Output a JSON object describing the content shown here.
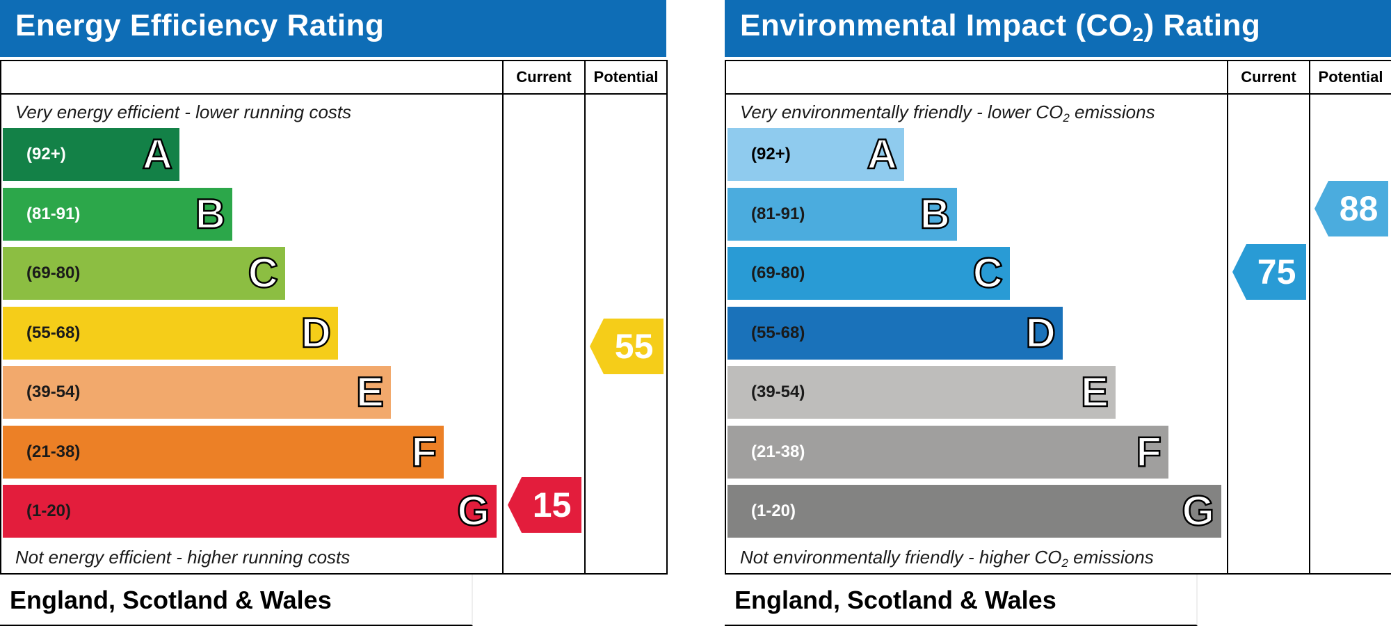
{
  "chart_data": [
    {
      "type": "bar",
      "title": "Energy Efficiency Rating",
      "columns": [
        "Current",
        "Potential"
      ],
      "top_caption": "Very energy efficient - lower running costs",
      "bottom_caption": "Not energy efficient - higher running costs",
      "region": "England, Scotland & Wales",
      "bands": [
        {
          "range": "(92+)",
          "letter": "A",
          "min": 92,
          "max": 100,
          "color": "#138147",
          "text_color": "#ffffff"
        },
        {
          "range": "(81-91)",
          "letter": "B",
          "min": 81,
          "max": 91,
          "color": "#2ca74a",
          "text_color": "#ffffff"
        },
        {
          "range": "(69-80)",
          "letter": "C",
          "min": 69,
          "max": 80,
          "color": "#8cbe42",
          "text_color": "#1a1a1a"
        },
        {
          "range": "(55-68)",
          "letter": "D",
          "min": 55,
          "max": 68,
          "color": "#f5cd19",
          "text_color": "#1a1a1a"
        },
        {
          "range": "(39-54)",
          "letter": "E",
          "min": 39,
          "max": 54,
          "color": "#f2a96c",
          "text_color": "#1a1a1a"
        },
        {
          "range": "(21-38)",
          "letter": "F",
          "min": 21,
          "max": 38,
          "color": "#ec8026",
          "text_color": "#1a1a1a"
        },
        {
          "range": "(1-20)",
          "letter": "G",
          "min": 1,
          "max": 20,
          "color": "#e31d3c",
          "text_color": "#1a1a1a"
        }
      ],
      "current": {
        "value": 15,
        "band": "G",
        "color": "#e31d3c"
      },
      "potential": {
        "value": 55,
        "band": "D",
        "color": "#f5cd19"
      }
    },
    {
      "type": "bar",
      "title": "Environmental Impact (CO",
      "title_sub": "2",
      "title_end": ") Rating",
      "columns": [
        "Current",
        "Potential"
      ],
      "top_caption": "Very environmentally friendly - lower CO",
      "top_caption_sub": "2",
      "top_caption_end": " emissions",
      "bottom_caption": "Not environmentally friendly - higher CO",
      "bottom_caption_sub": "2",
      "bottom_caption_end": " emissions",
      "region": "England, Scotland & Wales",
      "bands": [
        {
          "range": "(92+)",
          "letter": "A",
          "min": 92,
          "max": 100,
          "color": "#8fcbee",
          "text_color": "#000000"
        },
        {
          "range": "(81-91)",
          "letter": "B",
          "min": 81,
          "max": 91,
          "color": "#4bacde",
          "text_color": "#1a1a1a"
        },
        {
          "range": "(69-80)",
          "letter": "C",
          "min": 69,
          "max": 80,
          "color": "#299bd5",
          "text_color": "#1a1a1a"
        },
        {
          "range": "(55-68)",
          "letter": "D",
          "min": 55,
          "max": 68,
          "color": "#1a72ba",
          "text_color": "#1a1a1a"
        },
        {
          "range": "(39-54)",
          "letter": "E",
          "min": 39,
          "max": 54,
          "color": "#bebdbb",
          "text_color": "#1a1a1a"
        },
        {
          "range": "(21-38)",
          "letter": "F",
          "min": 21,
          "max": 38,
          "color": "#a09f9e",
          "text_color": "#ffffff"
        },
        {
          "range": "(1-20)",
          "letter": "G",
          "min": 1,
          "max": 20,
          "color": "#838382",
          "text_color": "#ffffff"
        }
      ],
      "current": {
        "value": 75,
        "band": "C",
        "color": "#299bd5"
      },
      "potential": {
        "value": 88,
        "band": "B",
        "color": "#4bacde"
      }
    }
  ]
}
